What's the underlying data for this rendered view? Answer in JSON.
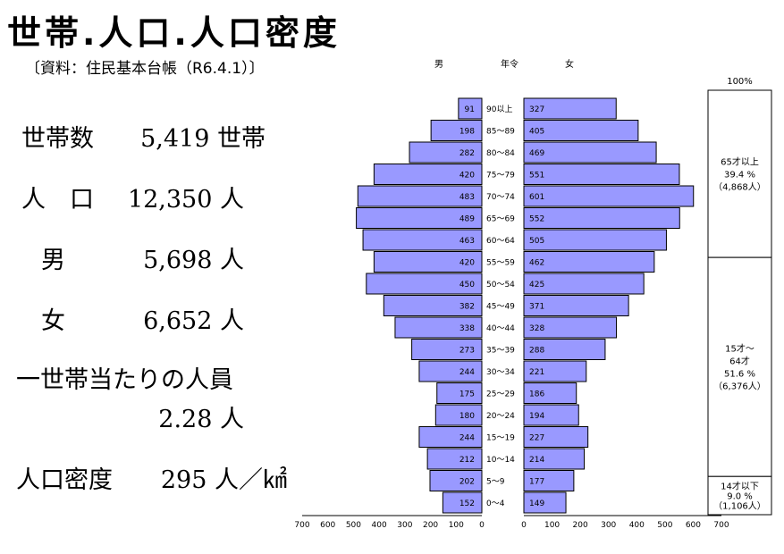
{
  "title": "世帯.人口.人口密度",
  "source": "〔資料：住民基本台帳（R6.4.1）〕",
  "stats": {
    "households": {
      "label": "世帯数",
      "value": "5,419 世帯"
    },
    "population": {
      "label": "人　口",
      "value": "12,350 人"
    },
    "male": {
      "label": "男",
      "value": "5,698 人"
    },
    "female": {
      "label": "女",
      "value": "6,652 人"
    },
    "per_household": {
      "label": "一世帯当たりの人員",
      "value": "2.28 人"
    },
    "density": {
      "label": "人口密度",
      "value": "295 人／㎢"
    }
  },
  "chart_data": [
    {
      "type": "bar",
      "orientation": "horizontal",
      "header_male": "男",
      "header_age": "年令",
      "header_female": "女",
      "categories": [
        "90以上",
        "85～89",
        "80～84",
        "75～79",
        "70～74",
        "65～69",
        "60～64",
        "55～59",
        "50～54",
        "45～49",
        "40～44",
        "35～39",
        "30～34",
        "25～29",
        "20～24",
        "15～19",
        "10～14",
        "5～9",
        "0～4"
      ],
      "series": [
        {
          "name": "男",
          "values": [
            91,
            198,
            282,
            420,
            483,
            489,
            463,
            420,
            450,
            382,
            338,
            273,
            244,
            175,
            180,
            244,
            212,
            202,
            152
          ]
        },
        {
          "name": "女",
          "values": [
            327,
            405,
            469,
            551,
            601,
            552,
            505,
            462,
            425,
            371,
            328,
            288,
            221,
            186,
            194,
            227,
            214,
            177,
            149
          ]
        }
      ],
      "xlim": [
        0,
        700
      ],
      "ticks": [
        "700",
        "600",
        "500",
        "400",
        "300",
        "200",
        "100",
        "0"
      ],
      "ticks_right": [
        "0",
        "100",
        "200",
        "300",
        "400",
        "500",
        "600",
        "700"
      ],
      "bar_color": "#9999ff"
    },
    {
      "type": "bar",
      "stacked": true,
      "top_label": "100%",
      "segments": [
        {
          "name": "65才以上",
          "percent_text": "39.4 %",
          "count_text": "（4,868人）",
          "value": 39.4
        },
        {
          "name": "15才～",
          "name2": "64才",
          "percent_text": "51.6 %",
          "count_text": "（6,376人）",
          "value": 51.6
        },
        {
          "name": "14才以下",
          "percent_text": "9.0 %",
          "count_text": "（1,106人）",
          "value": 9.0
        }
      ]
    }
  ]
}
